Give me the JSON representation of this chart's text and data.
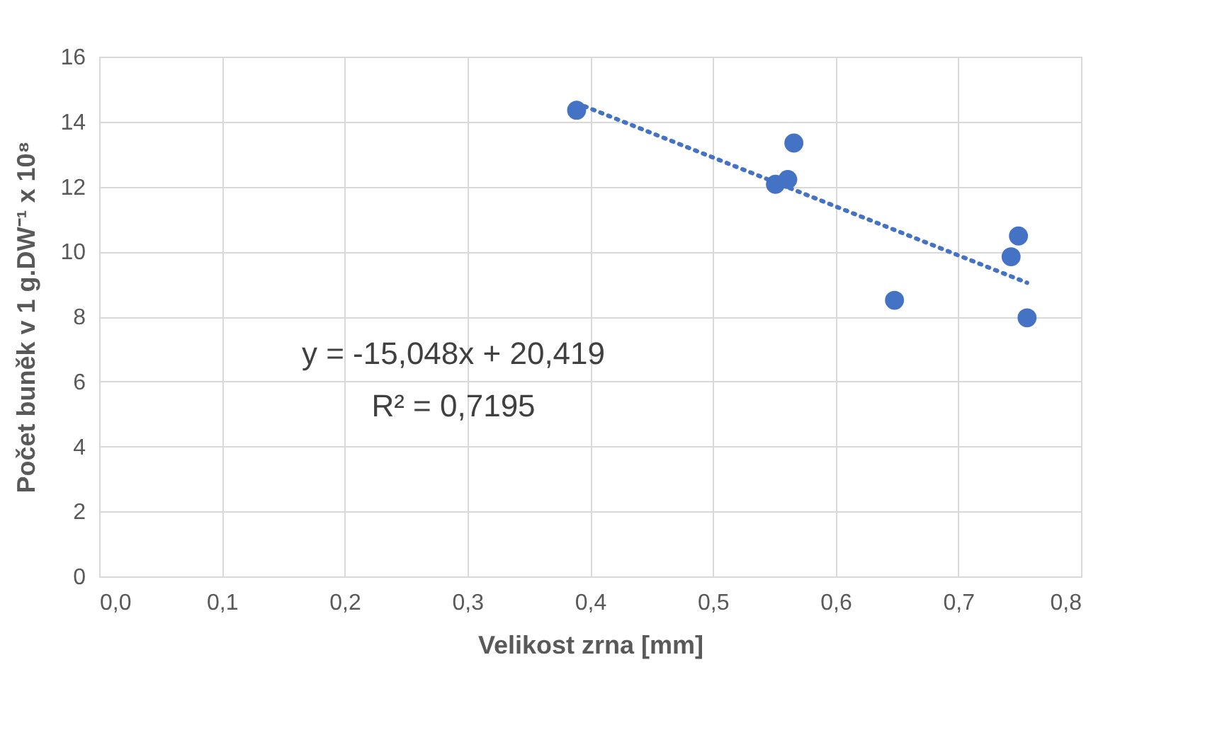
{
  "chart_data": {
    "type": "scatter",
    "xlabel": "Velikost zrna [mm]",
    "ylabel": "Počet buněk v 1 g.DW⁻¹ x 10⁸",
    "x": [
      0.389,
      0.566,
      0.551,
      0.561,
      0.749,
      0.743,
      0.648,
      0.756
    ],
    "series": [
      {
        "type": "scatter",
        "color": "#4472c4",
        "marker": "circle",
        "values": [
          14.35,
          13.34,
          12.07,
          12.22,
          10.48,
          9.84,
          8.5,
          7.96
        ]
      },
      {
        "type": "line",
        "color": "#4472c4",
        "line_style": "dotted",
        "marker": "none",
        "x": [
          0.389,
          0.756
        ],
        "values": [
          14.57,
          9.04
        ]
      }
    ],
    "xlim": [
      0,
      0.8
    ],
    "ylim": [
      0,
      16
    ],
    "xticks": [
      {
        "value": 0,
        "label": "0,0"
      },
      {
        "value": 0.1,
        "label": "0,1"
      },
      {
        "value": 0.2,
        "label": "0,2"
      },
      {
        "value": 0.3,
        "label": "0,3"
      },
      {
        "value": 0.4,
        "label": "0,4"
      },
      {
        "value": 0.5,
        "label": "0,5"
      },
      {
        "value": 0.6,
        "label": "0,6"
      },
      {
        "value": 0.7,
        "label": "0,7"
      },
      {
        "value": 0.8,
        "label": "0,8"
      }
    ],
    "yticks": [
      0,
      2,
      4,
      6,
      8,
      10,
      12,
      14,
      16
    ],
    "grid": true,
    "annotations": [
      "y = -15,048x + 20,419",
      "R² = 0,7195"
    ]
  }
}
